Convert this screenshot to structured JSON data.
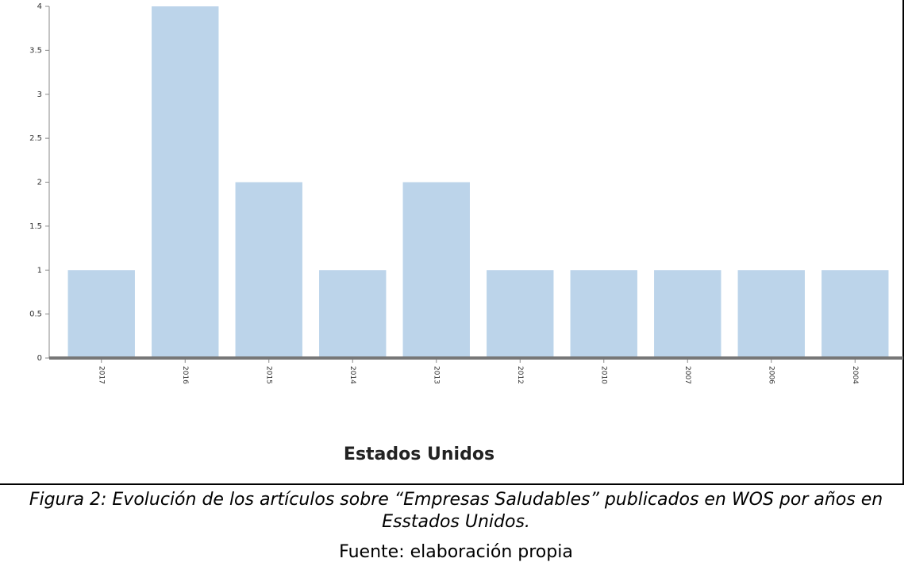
{
  "chart_data": {
    "type": "bar",
    "categories": [
      "2017",
      "2016",
      "2015",
      "2014",
      "2013",
      "2012",
      "2010",
      "2007",
      "2006",
      "2004"
    ],
    "values": [
      1,
      4,
      2,
      1,
      2,
      1,
      1,
      1,
      1,
      1
    ],
    "color": "#bcd4ea",
    "ylim": [
      0,
      4
    ],
    "yticks": [
      0,
      0.5,
      1,
      1.5,
      2,
      2.5,
      3,
      3.5,
      4
    ],
    "xlabel": "Estados Unidos",
    "caption": [
      "Figura 2: Evolución de los artículos sobre “Empresas Saludables”  publicados en WOS por años en",
      "Esstados Unidos."
    ],
    "source": "Fuente: elaboración propia"
  }
}
